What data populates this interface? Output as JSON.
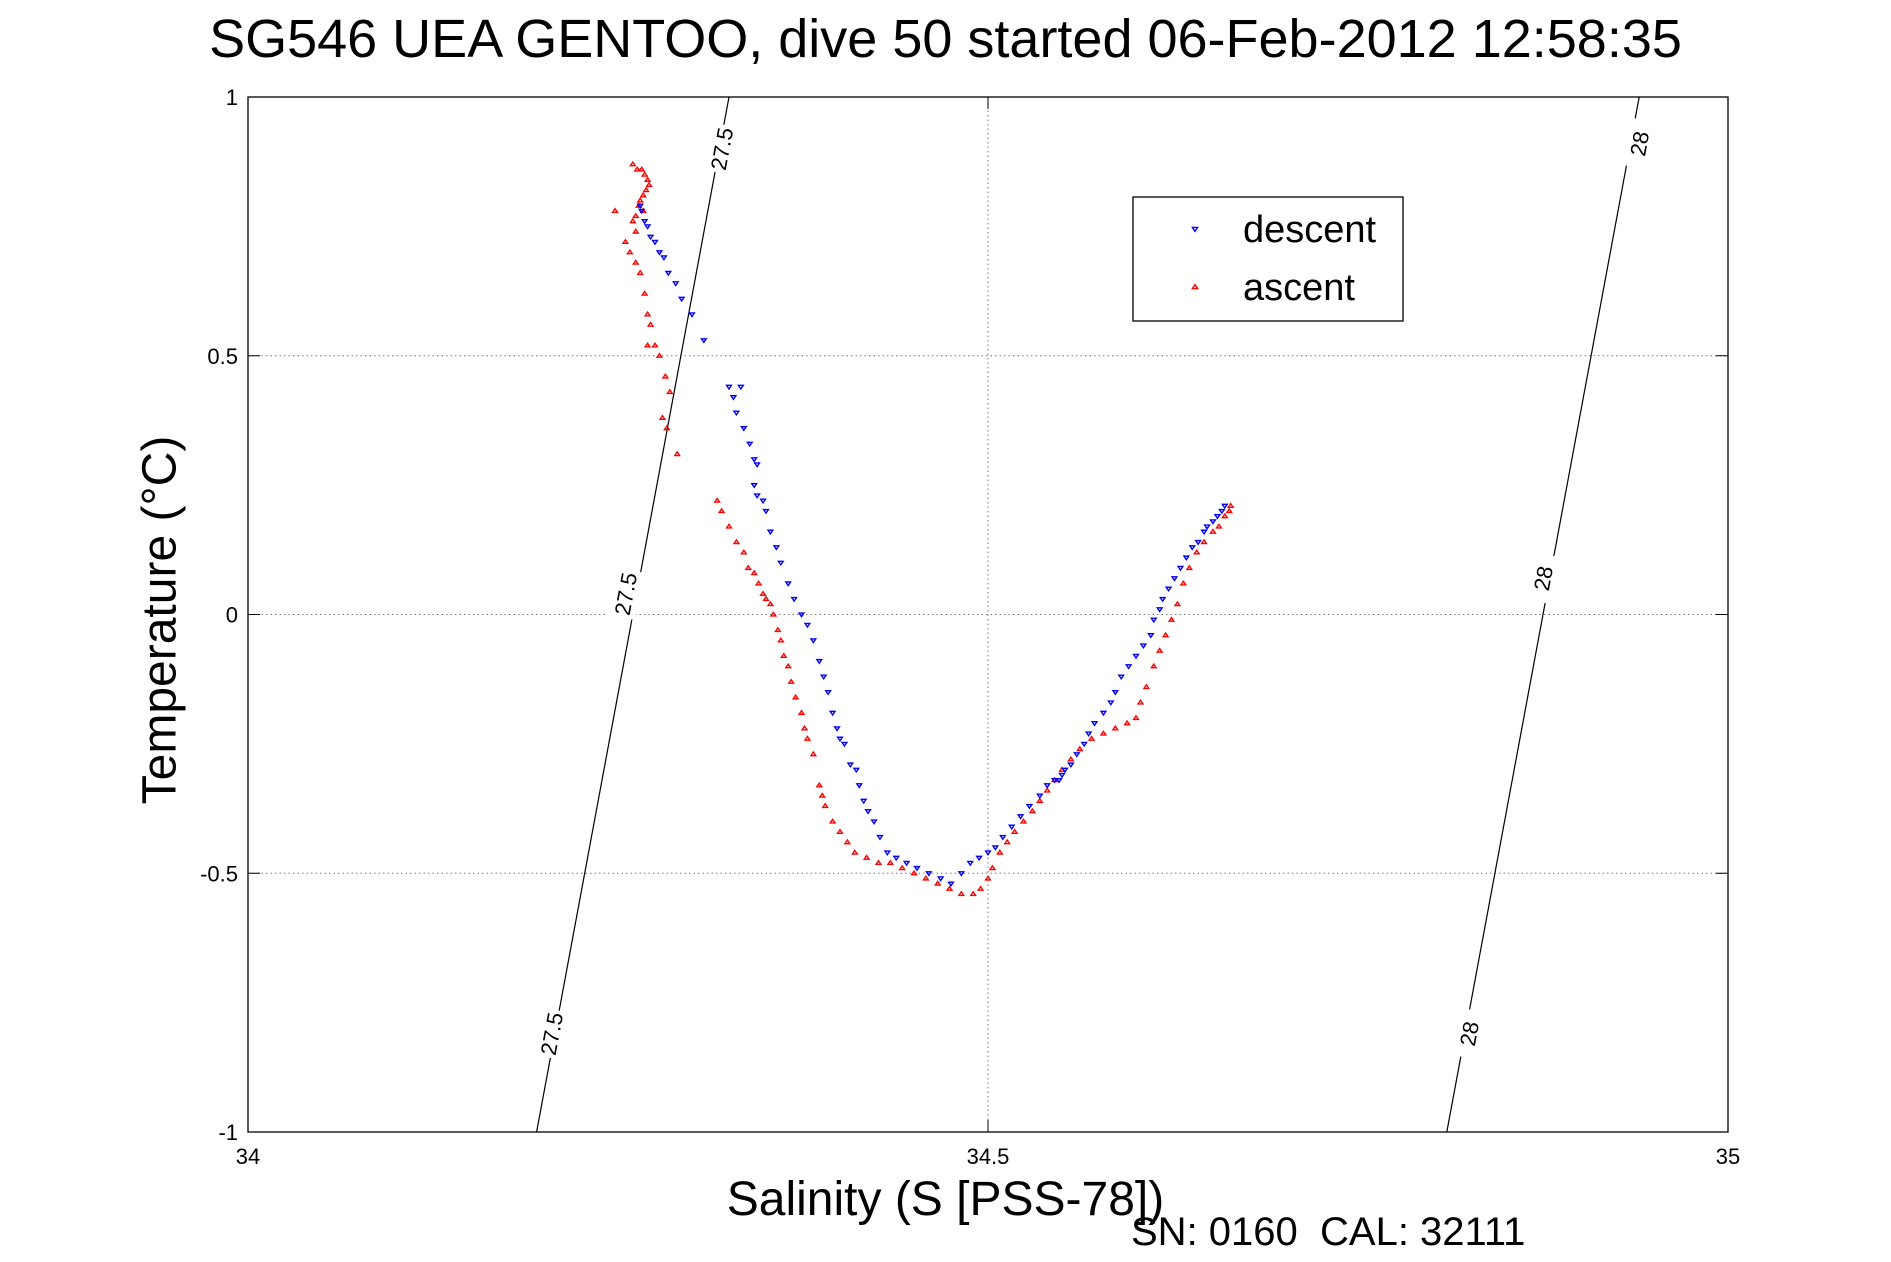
{
  "chart_data": {
    "type": "scatter",
    "title": "SG546 UEA GENTOO, dive 50 started 06-Feb-2012 12:58:35",
    "xlabel": "Salinity (S [PSS-78])",
    "ylabel": "Temperature (°C)",
    "xlim": [
      34,
      35
    ],
    "ylim": [
      -1,
      1
    ],
    "x_ticks": [
      34,
      34.5,
      35
    ],
    "x_tick_labels": [
      "34",
      "34.5",
      "35"
    ],
    "y_ticks": [
      -1,
      -0.5,
      0,
      0.5,
      1
    ],
    "y_tick_labels": [
      "-1",
      "-0.5",
      "0",
      "0.5",
      "1"
    ],
    "grid": true,
    "legend_position": "top-right",
    "annotation": "SN: 0160  CAL: 32111",
    "isopycnals": [
      {
        "label": "27.5",
        "points": [
          [
            34.195,
            -1.0
          ],
          [
            34.325,
            1.0
          ]
        ],
        "label_positions": [
          [
            34.205,
            -0.81
          ],
          [
            34.255,
            0.04
          ],
          [
            34.32,
            0.9
          ]
        ]
      },
      {
        "label": "28",
        "points": [
          [
            34.81,
            -1.0
          ],
          [
            34.94,
            1.0
          ]
        ],
        "label_positions": [
          [
            34.825,
            -0.81
          ],
          [
            34.875,
            0.07
          ],
          [
            34.94,
            0.91
          ]
        ]
      }
    ],
    "series": [
      {
        "name": "descent",
        "color": "#0000ff",
        "marker": "triangle-down",
        "points": [
          [
            34.265,
            0.79
          ],
          [
            34.266,
            0.78
          ],
          [
            34.268,
            0.76
          ],
          [
            34.27,
            0.75
          ],
          [
            34.272,
            0.73
          ],
          [
            34.275,
            0.72
          ],
          [
            34.278,
            0.7
          ],
          [
            34.281,
            0.69
          ],
          [
            34.284,
            0.66
          ],
          [
            34.289,
            0.64
          ],
          [
            34.293,
            0.61
          ],
          [
            34.3,
            0.58
          ],
          [
            34.308,
            0.53
          ],
          [
            34.325,
            0.44
          ],
          [
            34.333,
            0.44
          ],
          [
            34.328,
            0.42
          ],
          [
            34.33,
            0.39
          ],
          [
            34.335,
            0.36
          ],
          [
            34.339,
            0.33
          ],
          [
            34.342,
            0.3
          ],
          [
            34.344,
            0.29
          ],
          [
            34.342,
            0.25
          ],
          [
            34.344,
            0.23
          ],
          [
            34.348,
            0.22
          ],
          [
            34.35,
            0.2
          ],
          [
            34.353,
            0.16
          ],
          [
            34.357,
            0.13
          ],
          [
            34.36,
            0.1
          ],
          [
            34.365,
            0.06
          ],
          [
            34.369,
            0.03
          ],
          [
            34.374,
            0.0
          ],
          [
            34.378,
            -0.02
          ],
          [
            34.382,
            -0.05
          ],
          [
            34.386,
            -0.09
          ],
          [
            34.389,
            -0.12
          ],
          [
            34.392,
            -0.15
          ],
          [
            34.395,
            -0.19
          ],
          [
            34.398,
            -0.22
          ],
          [
            34.4,
            -0.24
          ],
          [
            34.403,
            -0.25
          ],
          [
            34.407,
            -0.29
          ],
          [
            34.411,
            -0.3
          ],
          [
            34.413,
            -0.33
          ],
          [
            34.416,
            -0.36
          ],
          [
            34.419,
            -0.38
          ],
          [
            34.423,
            -0.4
          ],
          [
            34.427,
            -0.43
          ],
          [
            34.432,
            -0.46
          ],
          [
            34.438,
            -0.47
          ],
          [
            34.445,
            -0.48
          ],
          [
            34.452,
            -0.49
          ],
          [
            34.46,
            -0.5
          ],
          [
            34.468,
            -0.51
          ],
          [
            34.475,
            -0.52
          ],
          [
            34.482,
            -0.5
          ],
          [
            34.488,
            -0.48
          ],
          [
            34.494,
            -0.47
          ],
          [
            34.5,
            -0.46
          ],
          [
            34.505,
            -0.45
          ],
          [
            34.51,
            -0.43
          ],
          [
            34.516,
            -0.41
          ],
          [
            34.522,
            -0.39
          ],
          [
            34.528,
            -0.37
          ],
          [
            34.535,
            -0.35
          ],
          [
            34.54,
            -0.33
          ],
          [
            34.545,
            -0.32
          ],
          [
            34.548,
            -0.32
          ],
          [
            34.55,
            -0.31
          ],
          [
            34.552,
            -0.3
          ],
          [
            34.556,
            -0.29
          ],
          [
            34.56,
            -0.27
          ],
          [
            34.565,
            -0.25
          ],
          [
            34.568,
            -0.23
          ],
          [
            34.572,
            -0.21
          ],
          [
            34.578,
            -0.19
          ],
          [
            34.583,
            -0.17
          ],
          [
            34.586,
            -0.15
          ],
          [
            34.59,
            -0.12
          ],
          [
            34.595,
            -0.1
          ],
          [
            34.6,
            -0.08
          ],
          [
            34.605,
            -0.06
          ],
          [
            34.61,
            -0.04
          ],
          [
            34.612,
            -0.01
          ],
          [
            34.616,
            0.01
          ],
          [
            34.618,
            0.03
          ],
          [
            34.622,
            0.05
          ],
          [
            34.626,
            0.07
          ],
          [
            34.63,
            0.09
          ],
          [
            34.634,
            0.11
          ],
          [
            34.638,
            0.13
          ],
          [
            34.642,
            0.14
          ],
          [
            34.646,
            0.16
          ],
          [
            34.648,
            0.17
          ],
          [
            34.652,
            0.18
          ],
          [
            34.655,
            0.19
          ],
          [
            34.658,
            0.2
          ],
          [
            34.66,
            0.21
          ]
        ]
      },
      {
        "name": "ascent",
        "color": "#ff0000",
        "marker": "triangle-up",
        "points": [
          [
            34.26,
            0.87
          ],
          [
            34.263,
            0.86
          ],
          [
            34.266,
            0.86
          ],
          [
            34.268,
            0.85
          ],
          [
            34.27,
            0.84
          ],
          [
            34.271,
            0.83
          ],
          [
            34.269,
            0.82
          ],
          [
            34.267,
            0.81
          ],
          [
            34.265,
            0.8
          ],
          [
            34.264,
            0.79
          ],
          [
            34.267,
            0.78
          ],
          [
            34.248,
            0.78
          ],
          [
            34.262,
            0.77
          ],
          [
            34.26,
            0.76
          ],
          [
            34.262,
            0.74
          ],
          [
            34.255,
            0.72
          ],
          [
            34.258,
            0.7
          ],
          [
            34.262,
            0.68
          ],
          [
            34.265,
            0.66
          ],
          [
            34.268,
            0.62
          ],
          [
            34.27,
            0.58
          ],
          [
            34.272,
            0.56
          ],
          [
            34.27,
            0.52
          ],
          [
            34.275,
            0.52
          ],
          [
            34.278,
            0.5
          ],
          [
            34.282,
            0.46
          ],
          [
            34.285,
            0.43
          ],
          [
            34.28,
            0.38
          ],
          [
            34.283,
            0.36
          ],
          [
            34.29,
            0.31
          ],
          [
            34.317,
            0.22
          ],
          [
            34.32,
            0.2
          ],
          [
            34.325,
            0.17
          ],
          [
            34.33,
            0.14
          ],
          [
            34.335,
            0.12
          ],
          [
            34.338,
            0.09
          ],
          [
            34.342,
            0.08
          ],
          [
            34.345,
            0.06
          ],
          [
            34.348,
            0.04
          ],
          [
            34.35,
            0.03
          ],
          [
            34.353,
            0.02
          ],
          [
            34.355,
            0.0
          ],
          [
            34.358,
            -0.03
          ],
          [
            34.36,
            -0.05
          ],
          [
            34.362,
            -0.08
          ],
          [
            34.365,
            -0.1
          ],
          [
            34.367,
            -0.13
          ],
          [
            34.37,
            -0.16
          ],
          [
            34.374,
            -0.19
          ],
          [
            34.376,
            -0.22
          ],
          [
            34.378,
            -0.24
          ],
          [
            34.382,
            -0.27
          ],
          [
            34.386,
            -0.33
          ],
          [
            34.388,
            -0.35
          ],
          [
            34.39,
            -0.37
          ],
          [
            34.395,
            -0.4
          ],
          [
            34.4,
            -0.42
          ],
          [
            34.405,
            -0.44
          ],
          [
            34.41,
            -0.46
          ],
          [
            34.418,
            -0.47
          ],
          [
            34.426,
            -0.48
          ],
          [
            34.434,
            -0.48
          ],
          [
            34.442,
            -0.49
          ],
          [
            34.45,
            -0.5
          ],
          [
            34.458,
            -0.51
          ],
          [
            34.466,
            -0.52
          ],
          [
            34.474,
            -0.53
          ],
          [
            34.482,
            -0.54
          ],
          [
            34.49,
            -0.54
          ],
          [
            34.495,
            -0.53
          ],
          [
            34.5,
            -0.51
          ],
          [
            34.503,
            -0.49
          ],
          [
            34.508,
            -0.46
          ],
          [
            34.513,
            -0.44
          ],
          [
            34.518,
            -0.42
          ],
          [
            34.524,
            -0.4
          ],
          [
            34.53,
            -0.38
          ],
          [
            34.535,
            -0.36
          ],
          [
            34.54,
            -0.34
          ],
          [
            34.545,
            -0.32
          ],
          [
            34.55,
            -0.3
          ],
          [
            34.556,
            -0.28
          ],
          [
            34.562,
            -0.26
          ],
          [
            34.57,
            -0.24
          ],
          [
            34.578,
            -0.23
          ],
          [
            34.586,
            -0.22
          ],
          [
            34.594,
            -0.21
          ],
          [
            34.6,
            -0.2
          ],
          [
            34.603,
            -0.17
          ],
          [
            34.607,
            -0.14
          ],
          [
            34.612,
            -0.1
          ],
          [
            34.616,
            -0.07
          ],
          [
            34.62,
            -0.04
          ],
          [
            34.624,
            -0.01
          ],
          [
            34.628,
            0.02
          ],
          [
            34.632,
            0.06
          ],
          [
            34.636,
            0.09
          ],
          [
            34.641,
            0.12
          ],
          [
            34.646,
            0.14
          ],
          [
            34.652,
            0.16
          ],
          [
            34.656,
            0.17
          ],
          [
            34.66,
            0.19
          ],
          [
            34.663,
            0.2
          ],
          [
            34.664,
            0.21
          ]
        ]
      }
    ]
  }
}
